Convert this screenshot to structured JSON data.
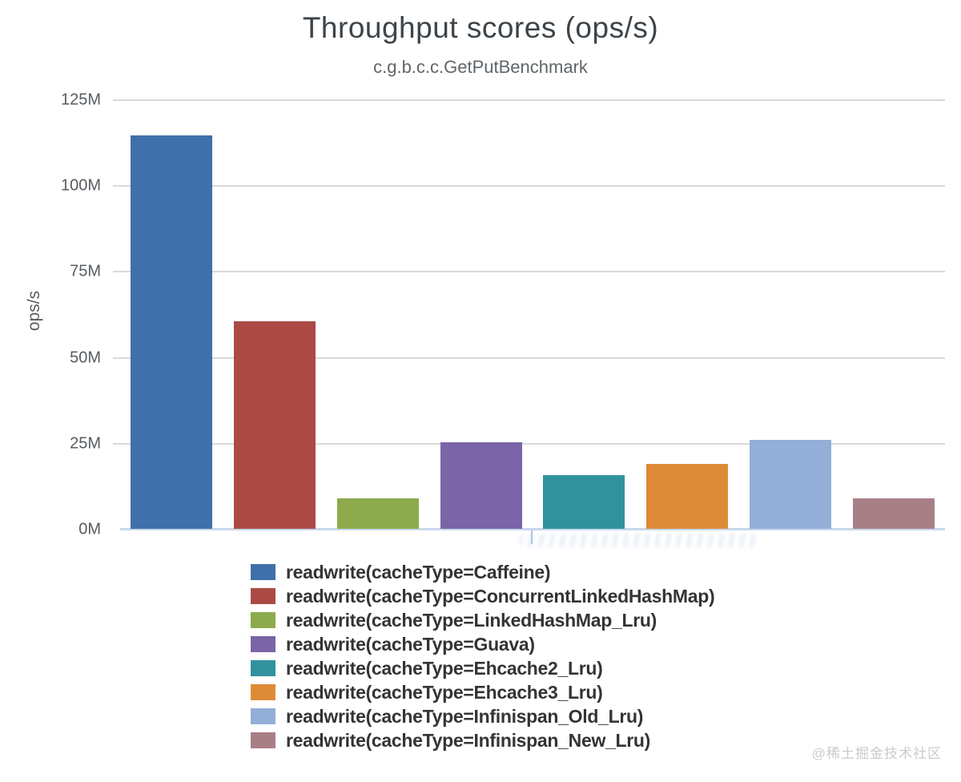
{
  "page": {
    "watermark": "@稀土掘金技术社区"
  },
  "chart_data": {
    "type": "bar",
    "title": "Throughput scores (ops/s)",
    "subtitle": "c.g.b.c.c.GetPutBenchmark",
    "ylabel": "ops/s",
    "xlabel": "",
    "unit": "million ops/s",
    "ylim_m": [
      0,
      125
    ],
    "grid": true,
    "legend_position": "bottom",
    "yticks": [
      {
        "value_m": 0,
        "label": "0M"
      },
      {
        "value_m": 25,
        "label": "25M"
      },
      {
        "value_m": 50,
        "label": "50M"
      },
      {
        "value_m": 75,
        "label": "75M"
      },
      {
        "value_m": 100,
        "label": "100M"
      },
      {
        "value_m": 125,
        "label": "125M"
      }
    ],
    "series": [
      {
        "name": "readwrite(cacheType=Caffeine)",
        "slug": "caffeine",
        "value_m": 114.5,
        "color": "#3f70a9"
      },
      {
        "name": "readwrite(cacheType=ConcurrentLinkedHashMap)",
        "slug": "concurrentlinkedhashmap",
        "value_m": 60.4,
        "color": "#ab4a45"
      },
      {
        "name": "readwrite(cacheType=LinkedHashMap_Lru)",
        "slug": "linkedhashmap-lru",
        "value_m": 8.8,
        "color": "#8dab4c"
      },
      {
        "name": "readwrite(cacheType=Guava)",
        "slug": "guava",
        "value_m": 25.1,
        "color": "#7b64a8"
      },
      {
        "name": "readwrite(cacheType=Ehcache2_Lru)",
        "slug": "ehcache2-lru",
        "value_m": 15.6,
        "color": "#31929e"
      },
      {
        "name": "readwrite(cacheType=Ehcache3_Lru)",
        "slug": "ehcache3-lru",
        "value_m": 18.8,
        "color": "#de8b37"
      },
      {
        "name": "readwrite(cacheType=Infinispan_Old_Lru)",
        "slug": "infinispan-old-lru",
        "value_m": 26.0,
        "color": "#93aed7"
      },
      {
        "name": "readwrite(cacheType=Infinispan_New_Lru)",
        "slug": "infinispan-new-lru",
        "value_m": 8.9,
        "color": "#a97f87"
      }
    ]
  }
}
